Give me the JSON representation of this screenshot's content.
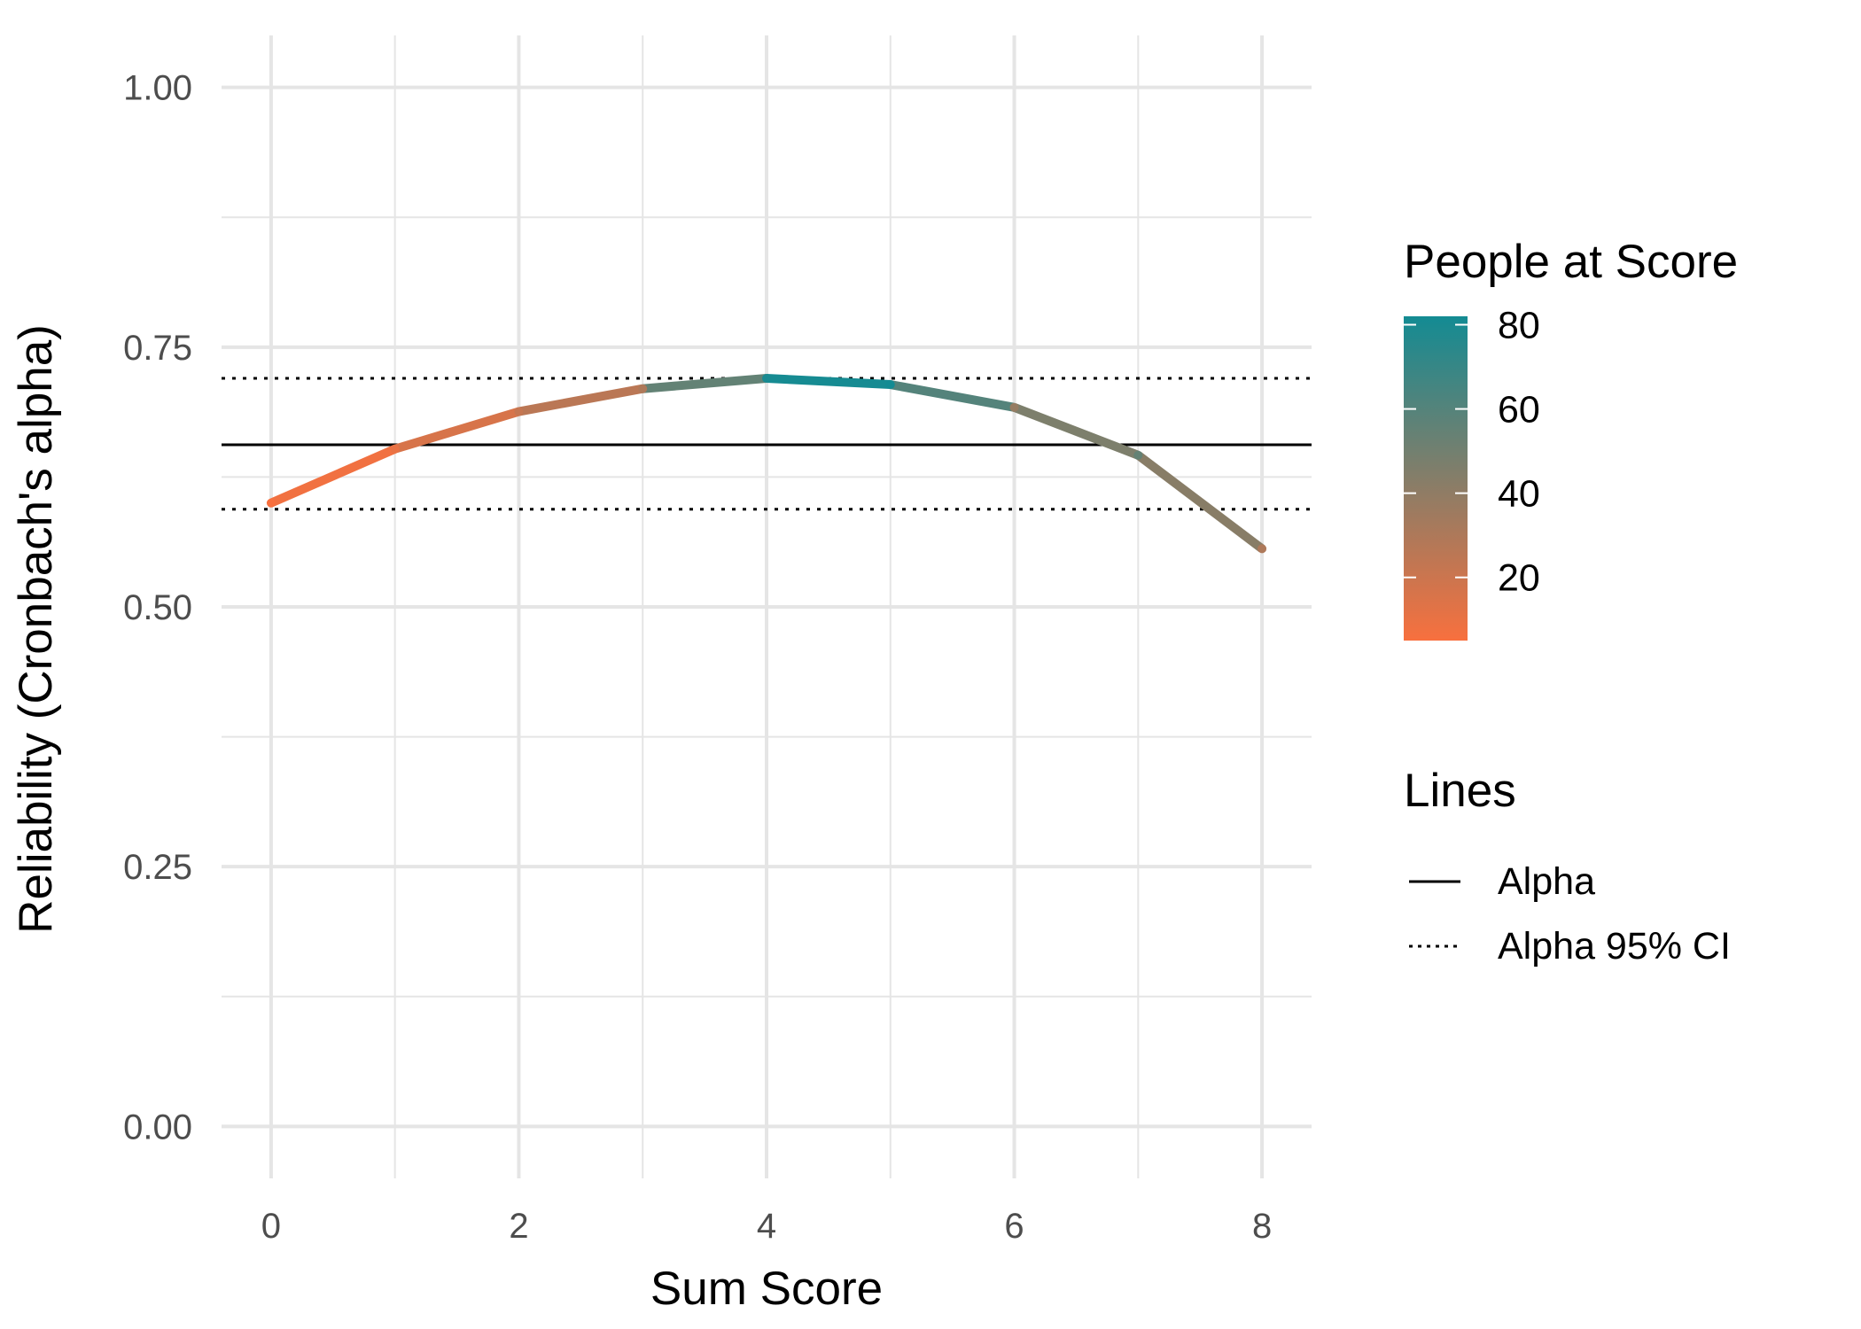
{
  "chart_data": {
    "type": "line",
    "xlabel": "Sum Score",
    "ylabel": "Reliability (Cronbach's alpha)",
    "xlim": [
      -0.4,
      8.4
    ],
    "ylim": [
      -0.05,
      1.05
    ],
    "x_ticks": [
      0,
      2,
      4,
      6,
      8
    ],
    "x_tick_labels": [
      "0",
      "2",
      "4",
      "6",
      "8"
    ],
    "y_ticks": [
      0,
      0.25,
      0.5,
      0.75,
      1.0
    ],
    "y_tick_labels": [
      "0.00",
      "0.25",
      "0.50",
      "0.75",
      "1.00"
    ],
    "grid": true,
    "series": [
      {
        "x": [
          0,
          1,
          2,
          3,
          4,
          5,
          6,
          7,
          8
        ],
        "y": [
          0.6,
          0.652,
          0.688,
          0.71,
          0.72,
          0.714,
          0.692,
          0.646,
          0.556
        ],
        "people": [
          5,
          10,
          22,
          30,
          80,
          82,
          38,
          55,
          30
        ]
      }
    ],
    "reference_lines": [
      {
        "name": "Alpha",
        "y": 0.656,
        "style": "solid"
      },
      {
        "name": "Alpha 95% CI",
        "y": 0.72,
        "style": "dotted"
      },
      {
        "name": "Alpha 95% CI",
        "y": 0.594,
        "style": "dotted"
      }
    ],
    "color_legend": {
      "title": "People at Score",
      "min": 5,
      "max": 82,
      "ticks": [
        20,
        40,
        60,
        80
      ],
      "low_color": "#F8703E",
      "high_color": "#138B93"
    },
    "line_legend": {
      "title": "Lines",
      "entries": [
        {
          "label": "Alpha",
          "style": "solid"
        },
        {
          "label": "Alpha 95% CI",
          "style": "dotted"
        }
      ]
    },
    "legend_position": "right"
  }
}
